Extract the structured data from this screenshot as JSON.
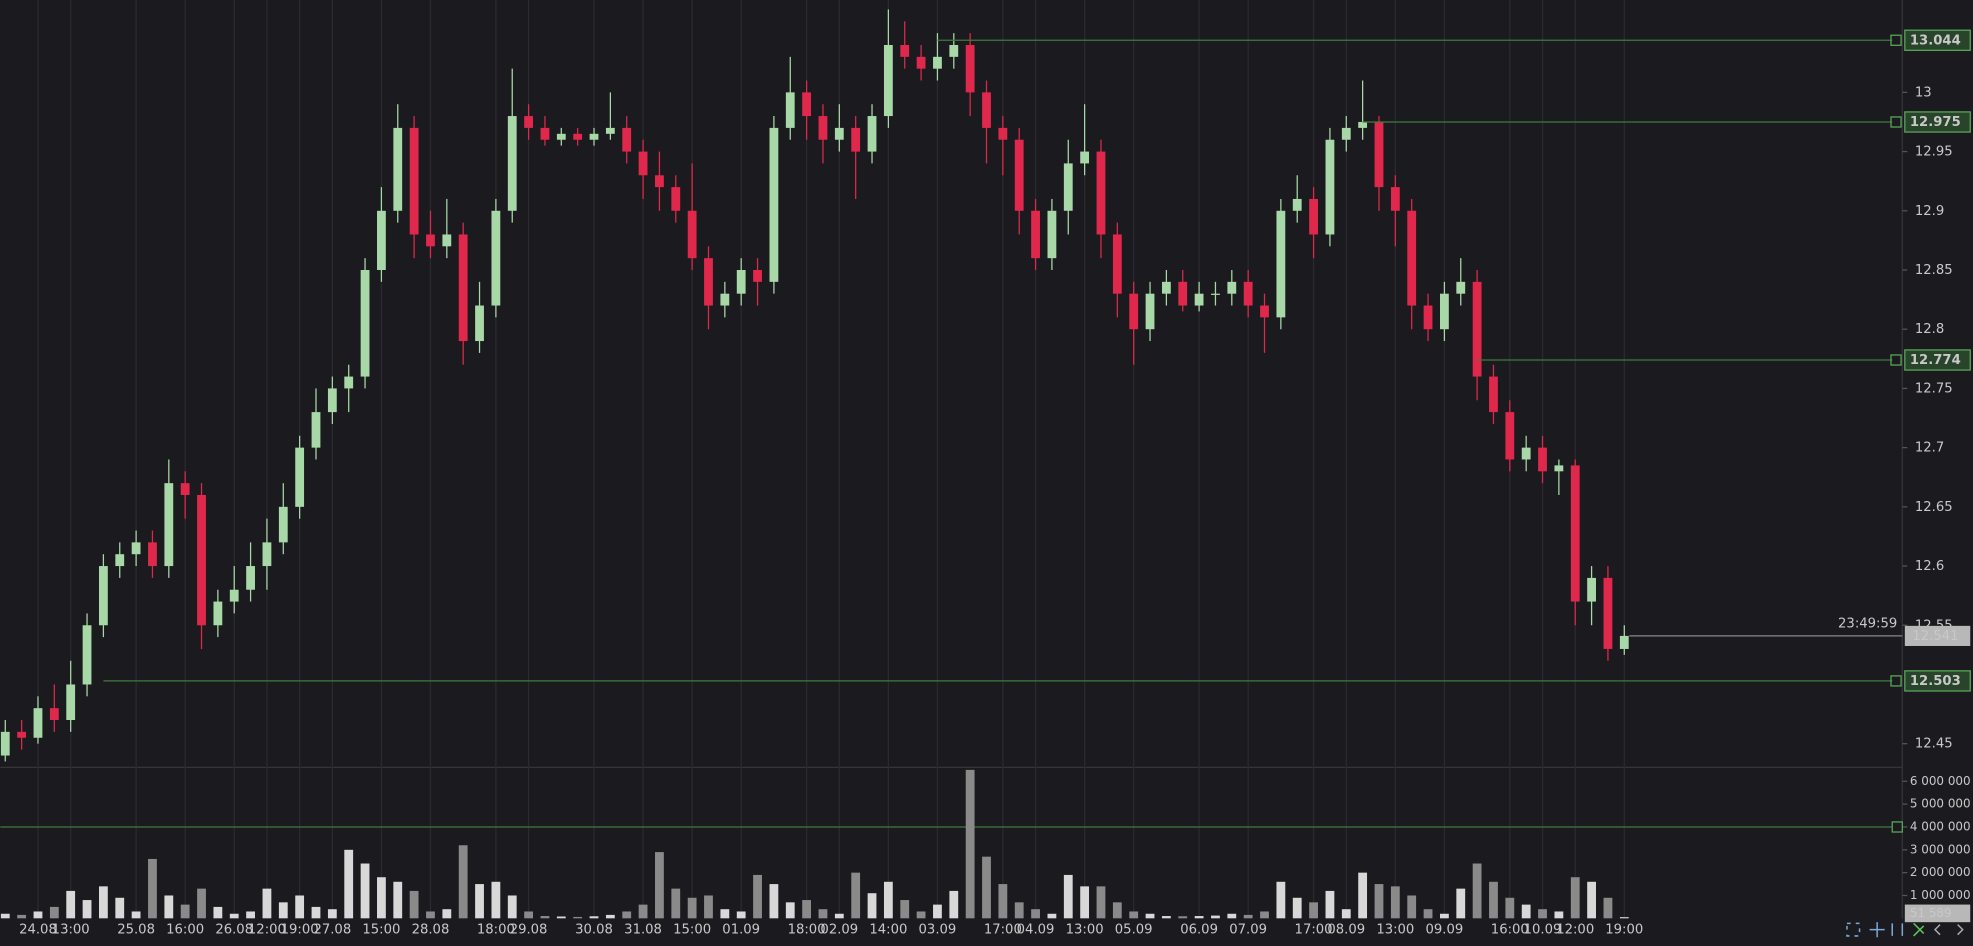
{
  "chart_data": {
    "type": "candlestick",
    "categories": [
      null,
      null,
      "24.08",
      null,
      "13:00",
      null,
      null,
      null,
      "25.08",
      null,
      null,
      "16:00",
      null,
      null,
      "26.08",
      null,
      "12:00",
      null,
      "19:00",
      null,
      "27.08",
      null,
      null,
      "15:00",
      null,
      null,
      "28.08",
      null,
      null,
      null,
      "18:00",
      null,
      "29.08",
      null,
      null,
      null,
      "30.08",
      null,
      null,
      "31.08",
      null,
      null,
      "15:00",
      null,
      null,
      "01.09",
      null,
      null,
      null,
      "18:00",
      null,
      "02.09",
      null,
      null,
      "14:00",
      null,
      null,
      "03.09",
      null,
      null,
      null,
      "17:00",
      null,
      "04.09",
      null,
      null,
      "13:00",
      null,
      null,
      "05.09",
      null,
      null,
      null,
      "06.09",
      null,
      null,
      "07.09",
      null,
      null,
      null,
      "17:00",
      null,
      "08.09",
      null,
      null,
      "13:00",
      null,
      null,
      "09.09",
      null,
      null,
      null,
      "16:00",
      null,
      "10.09",
      null,
      "12:00",
      null,
      null,
      "19:00"
    ],
    "open": [
      12.44,
      12.46,
      12.455,
      12.48,
      12.47,
      12.5,
      12.55,
      12.6,
      12.61,
      12.62,
      12.6,
      12.67,
      12.66,
      12.55,
      12.57,
      12.58,
      12.6,
      12.62,
      12.65,
      12.7,
      12.73,
      12.75,
      12.76,
      12.85,
      12.9,
      12.97,
      12.88,
      12.87,
      12.88,
      12.79,
      12.82,
      12.9,
      12.98,
      12.97,
      12.96,
      12.965,
      12.96,
      12.965,
      12.97,
      12.95,
      12.93,
      12.92,
      12.9,
      12.86,
      12.82,
      12.83,
      12.85,
      12.84,
      12.97,
      13.0,
      12.98,
      12.96,
      12.97,
      12.95,
      12.98,
      13.04,
      13.03,
      13.02,
      13.03,
      13.04,
      13.0,
      12.97,
      12.96,
      12.9,
      12.86,
      12.9,
      12.94,
      12.95,
      12.88,
      12.83,
      12.8,
      12.83,
      12.84,
      12.82,
      12.83,
      12.83,
      12.84,
      12.82,
      12.81,
      12.9,
      12.91,
      12.88,
      12.96,
      12.97,
      12.975,
      12.92,
      12.9,
      12.82,
      12.8,
      12.83,
      12.84,
      12.76,
      12.73,
      12.69,
      12.7,
      12.68,
      12.685,
      12.57,
      12.59,
      12.53
    ],
    "high": [
      12.47,
      12.47,
      12.49,
      12.5,
      12.52,
      12.56,
      12.61,
      12.62,
      12.63,
      12.63,
      12.69,
      12.68,
      12.67,
      12.58,
      12.6,
      12.62,
      12.64,
      12.67,
      12.71,
      12.75,
      12.76,
      12.77,
      12.86,
      12.92,
      12.99,
      12.98,
      12.9,
      12.91,
      12.89,
      12.84,
      12.91,
      13.02,
      12.99,
      12.98,
      12.97,
      12.97,
      12.97,
      13.0,
      12.98,
      12.96,
      12.95,
      12.93,
      12.94,
      12.87,
      12.84,
      12.86,
      12.86,
      12.98,
      13.03,
      13.01,
      12.99,
      12.99,
      12.98,
      12.99,
      13.07,
      13.06,
      13.04,
      13.05,
      13.05,
      13.05,
      13.01,
      12.98,
      12.97,
      12.91,
      12.91,
      12.96,
      12.99,
      12.96,
      12.89,
      12.84,
      12.84,
      12.85,
      12.85,
      12.84,
      12.84,
      12.85,
      12.85,
      12.83,
      12.91,
      12.93,
      12.92,
      12.97,
      12.98,
      13.01,
      12.98,
      12.93,
      12.91,
      12.83,
      12.84,
      12.86,
      12.85,
      12.77,
      12.74,
      12.71,
      12.71,
      12.69,
      12.69,
      12.6,
      12.6,
      12.55
    ],
    "low": [
      12.435,
      12.445,
      12.45,
      12.46,
      12.46,
      12.49,
      12.54,
      12.59,
      12.6,
      12.59,
      12.59,
      12.64,
      12.53,
      12.54,
      12.56,
      12.57,
      12.58,
      12.61,
      12.64,
      12.69,
      12.72,
      12.73,
      12.75,
      12.84,
      12.89,
      12.86,
      12.86,
      12.86,
      12.77,
      12.78,
      12.81,
      12.89,
      12.96,
      12.955,
      12.955,
      12.955,
      12.955,
      12.96,
      12.94,
      12.91,
      12.9,
      12.89,
      12.85,
      12.8,
      12.81,
      12.82,
      12.82,
      12.83,
      12.96,
      12.96,
      12.94,
      12.95,
      12.91,
      12.94,
      12.97,
      13.02,
      13.01,
      13.01,
      13.02,
      12.98,
      12.94,
      12.93,
      12.88,
      12.85,
      12.85,
      12.88,
      12.93,
      12.86,
      12.81,
      12.77,
      12.79,
      12.82,
      12.815,
      12.815,
      12.82,
      12.82,
      12.81,
      12.78,
      12.8,
      12.89,
      12.86,
      12.87,
      12.95,
      12.96,
      12.9,
      12.87,
      12.8,
      12.79,
      12.79,
      12.82,
      12.74,
      12.72,
      12.68,
      12.68,
      12.67,
      12.66,
      12.55,
      12.55,
      12.52,
      12.525
    ],
    "close": [
      12.46,
      12.455,
      12.48,
      12.47,
      12.5,
      12.55,
      12.6,
      12.61,
      12.62,
      12.6,
      12.67,
      12.66,
      12.55,
      12.57,
      12.58,
      12.6,
      12.62,
      12.65,
      12.7,
      12.73,
      12.75,
      12.76,
      12.85,
      12.9,
      12.97,
      12.88,
      12.87,
      12.88,
      12.79,
      12.82,
      12.9,
      12.98,
      12.97,
      12.96,
      12.965,
      12.96,
      12.965,
      12.97,
      12.95,
      12.93,
      12.92,
      12.9,
      12.86,
      12.82,
      12.83,
      12.85,
      12.84,
      12.97,
      13.0,
      12.98,
      12.96,
      12.97,
      12.95,
      12.98,
      13.04,
      13.03,
      13.02,
      13.03,
      13.04,
      13.0,
      12.97,
      12.96,
      12.9,
      12.86,
      12.9,
      12.94,
      12.95,
      12.88,
      12.83,
      12.8,
      12.83,
      12.84,
      12.82,
      12.83,
      12.83,
      12.84,
      12.82,
      12.81,
      12.9,
      12.91,
      12.88,
      12.96,
      12.97,
      12.975,
      12.92,
      12.9,
      12.82,
      12.8,
      12.83,
      12.84,
      12.76,
      12.73,
      12.69,
      12.7,
      12.68,
      12.685,
      12.57,
      12.59,
      12.53,
      12.541
    ],
    "volume": [
      200000,
      150000,
      300000,
      500000,
      1200000,
      800000,
      1400000,
      900000,
      300000,
      2600000,
      1000000,
      600000,
      1300000,
      500000,
      200000,
      300000,
      1300000,
      700000,
      1000000,
      500000,
      400000,
      3000000,
      2400000,
      1800000,
      1600000,
      1200000,
      300000,
      400000,
      3200000,
      1500000,
      1600000,
      1000000,
      300000,
      100000,
      80000,
      60000,
      90000,
      150000,
      300000,
      600000,
      2900000,
      1300000,
      900000,
      1000000,
      400000,
      300000,
      1900000,
      1500000,
      700000,
      800000,
      400000,
      200000,
      2000000,
      1100000,
      1600000,
      800000,
      300000,
      600000,
      1200000,
      6500000,
      2700000,
      1500000,
      700000,
      400000,
      200000,
      1900000,
      1400000,
      1400000,
      700000,
      300000,
      200000,
      100000,
      90000,
      100000,
      120000,
      200000,
      150000,
      300000,
      1600000,
      900000,
      700000,
      1200000,
      400000,
      2000000,
      1500000,
      1400000,
      1000000,
      400000,
      200000,
      1300000,
      2400000,
      1600000,
      900000,
      600000,
      400000,
      300000,
      1800000,
      1600000,
      900000,
      51589
    ],
    "up_color": "#a8d8a8",
    "down_color": "#e0284c",
    "volume_up_color": "#d8d8d8",
    "volume_down_color": "#8a8a8a",
    "ylim": [
      12.43,
      13.078
    ],
    "yticks": [
      12.45,
      12.55,
      12.6,
      12.65,
      12.7,
      12.75,
      12.8,
      12.85,
      12.9,
      12.95,
      13
    ],
    "volume_ylim": [
      0,
      6610000
    ],
    "volume_yticks": [
      {
        "value": 1000000,
        "label": "1 000 000"
      },
      {
        "value": 2000000,
        "label": "2 000 000"
      },
      {
        "value": 3000000,
        "label": "3 000 000"
      },
      {
        "value": 4000000,
        "label": "4 000 000"
      },
      {
        "value": 5000000,
        "label": "5 000 000"
      },
      {
        "value": 6000000,
        "label": "6 000 000"
      }
    ],
    "grid": "vertical",
    "price_levels": [
      {
        "value": 13.044,
        "from": 57
      },
      {
        "value": 12.975,
        "from": 83
      },
      {
        "value": 12.774,
        "from": 90
      },
      {
        "value": 12.503,
        "from": 6
      }
    ],
    "volume_level": 4000000,
    "current_price": 12.541,
    "countdown": "23:49:59",
    "current_volume": {
      "value": 51589,
      "label": "51 589"
    }
  }
}
